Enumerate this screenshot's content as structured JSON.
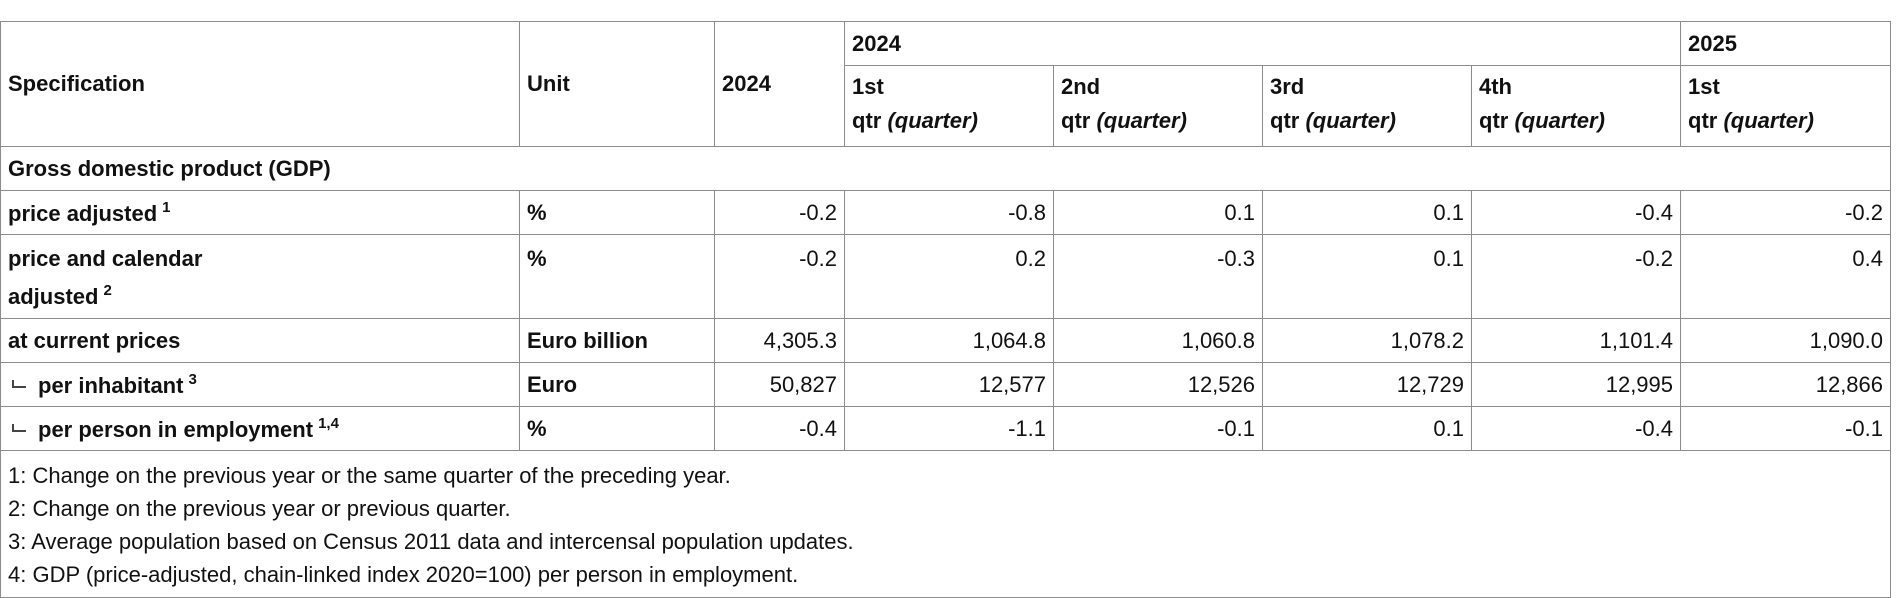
{
  "header": {
    "specification": "Specification",
    "unit": "Unit",
    "annual": "2024",
    "group_2024": "2024",
    "group_2025": "2025",
    "quarters": [
      {
        "ord": "1st",
        "qtr": "qtr",
        "note": "(quarter)"
      },
      {
        "ord": "2nd",
        "qtr": "qtr",
        "note": "(quarter)"
      },
      {
        "ord": "3rd",
        "qtr": "qtr",
        "note": "(quarter)"
      },
      {
        "ord": "4th",
        "qtr": "qtr",
        "note": "(quarter)"
      },
      {
        "ord": "1st",
        "qtr": "qtr",
        "note": "(quarter)"
      }
    ]
  },
  "section_title": "Gross domestic product (GDP)",
  "rows": [
    {
      "label": "price adjusted",
      "sup": "1",
      "unit": "%",
      "values": [
        "-0.2",
        "-0.8",
        "0.1",
        "0.1",
        "-0.4",
        "-0.2"
      ]
    },
    {
      "label_line1": "price and calendar",
      "label_line2": "adjusted",
      "sup": "2",
      "unit": "%",
      "values": [
        "-0.2",
        "0.2",
        "-0.3",
        "0.1",
        "-0.2",
        "0.4"
      ]
    },
    {
      "label": "at current prices",
      "unit": "Euro billion",
      "values": [
        "4,305.3",
        "1,064.8",
        "1,060.8",
        "1,078.2",
        "1,101.4",
        "1,090.0"
      ]
    },
    {
      "label": "per inhabitant",
      "sup": "3",
      "unit": "Euro",
      "values": [
        "50,827",
        "12,577",
        "12,526",
        "12,729",
        "12,995",
        "12,866"
      ]
    },
    {
      "label": "per person in employment",
      "sup": "1,4",
      "unit": "%",
      "values": [
        "-0.4",
        "-1.1",
        "-0.1",
        "0.1",
        "-0.4",
        "-0.1"
      ]
    }
  ],
  "footnotes": [
    "1: Change on the previous year or the same quarter of the preceding year.",
    "2: Change on the previous year or previous quarter.",
    "3: Average population based on Census 2011 data and intercensal population updates.",
    "4: GDP (price-adjusted, chain-linked index 2020=100) per person in employment."
  ]
}
